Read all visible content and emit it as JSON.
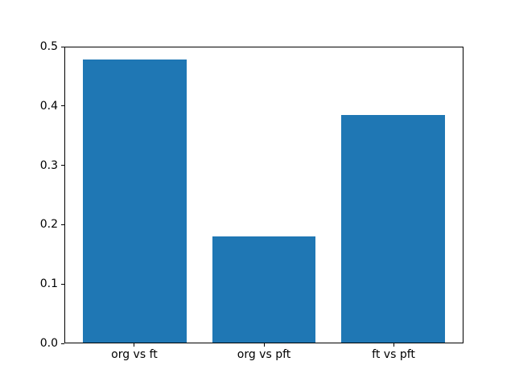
{
  "figure": {
    "background_color": "#ffffff",
    "spine_color": "#000000",
    "tick_text_color": "#000000"
  },
  "chart_data": {
    "type": "bar",
    "categories": [
      "org vs ft",
      "org vs pft",
      "ft vs pft"
    ],
    "values": [
      0.479,
      0.18,
      0.386
    ],
    "bar_color": "#1f77b4",
    "title": "",
    "xlabel": "",
    "ylabel": "",
    "ylim": [
      0,
      0.5
    ],
    "xlim": [
      -0.54,
      2.54
    ],
    "bar_width": 0.8,
    "bar_centers": [
      0,
      1,
      2
    ],
    "yticks": [
      0.0,
      0.1,
      0.2,
      0.3,
      0.4,
      0.5
    ],
    "ytick_labels": [
      "0.0",
      "0.1",
      "0.2",
      "0.3",
      "0.4",
      "0.5"
    ],
    "grid": false,
    "legend": null
  }
}
